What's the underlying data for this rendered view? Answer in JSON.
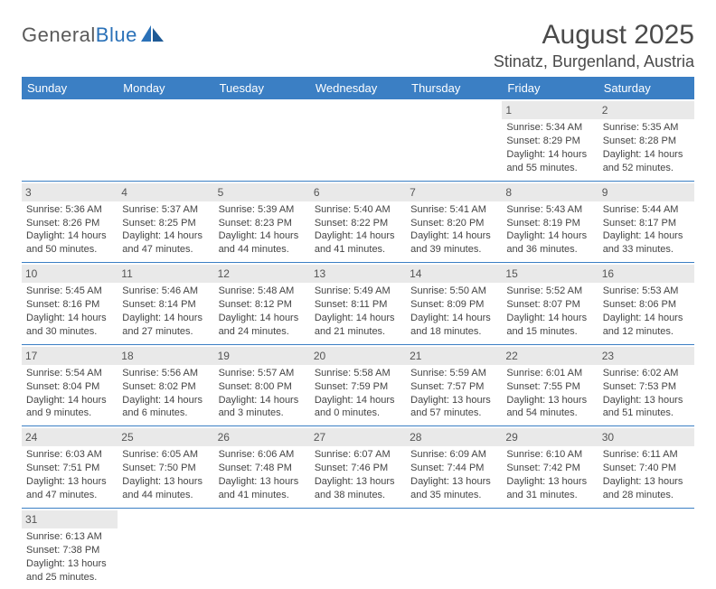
{
  "logo": {
    "word1": "General",
    "word2": "Blue"
  },
  "title": "August 2025",
  "location": "Stinatz, Burgenland, Austria",
  "colors": {
    "header_bg": "#3b7fc4",
    "header_text": "#ffffff",
    "daynum_bg": "#e9e9e9",
    "text": "#444444",
    "rule": "#3b7fc4",
    "logo_gray": "#5a5a5a",
    "logo_blue": "#2a71b8"
  },
  "day_headers": [
    "Sunday",
    "Monday",
    "Tuesday",
    "Wednesday",
    "Thursday",
    "Friday",
    "Saturday"
  ],
  "weeks": [
    [
      null,
      null,
      null,
      null,
      null,
      {
        "n": "1",
        "sr": "Sunrise: 5:34 AM",
        "ss": "Sunset: 8:29 PM",
        "dl": "Daylight: 14 hours and 55 minutes."
      },
      {
        "n": "2",
        "sr": "Sunrise: 5:35 AM",
        "ss": "Sunset: 8:28 PM",
        "dl": "Daylight: 14 hours and 52 minutes."
      }
    ],
    [
      {
        "n": "3",
        "sr": "Sunrise: 5:36 AM",
        "ss": "Sunset: 8:26 PM",
        "dl": "Daylight: 14 hours and 50 minutes."
      },
      {
        "n": "4",
        "sr": "Sunrise: 5:37 AM",
        "ss": "Sunset: 8:25 PM",
        "dl": "Daylight: 14 hours and 47 minutes."
      },
      {
        "n": "5",
        "sr": "Sunrise: 5:39 AM",
        "ss": "Sunset: 8:23 PM",
        "dl": "Daylight: 14 hours and 44 minutes."
      },
      {
        "n": "6",
        "sr": "Sunrise: 5:40 AM",
        "ss": "Sunset: 8:22 PM",
        "dl": "Daylight: 14 hours and 41 minutes."
      },
      {
        "n": "7",
        "sr": "Sunrise: 5:41 AM",
        "ss": "Sunset: 8:20 PM",
        "dl": "Daylight: 14 hours and 39 minutes."
      },
      {
        "n": "8",
        "sr": "Sunrise: 5:43 AM",
        "ss": "Sunset: 8:19 PM",
        "dl": "Daylight: 14 hours and 36 minutes."
      },
      {
        "n": "9",
        "sr": "Sunrise: 5:44 AM",
        "ss": "Sunset: 8:17 PM",
        "dl": "Daylight: 14 hours and 33 minutes."
      }
    ],
    [
      {
        "n": "10",
        "sr": "Sunrise: 5:45 AM",
        "ss": "Sunset: 8:16 PM",
        "dl": "Daylight: 14 hours and 30 minutes."
      },
      {
        "n": "11",
        "sr": "Sunrise: 5:46 AM",
        "ss": "Sunset: 8:14 PM",
        "dl": "Daylight: 14 hours and 27 minutes."
      },
      {
        "n": "12",
        "sr": "Sunrise: 5:48 AM",
        "ss": "Sunset: 8:12 PM",
        "dl": "Daylight: 14 hours and 24 minutes."
      },
      {
        "n": "13",
        "sr": "Sunrise: 5:49 AM",
        "ss": "Sunset: 8:11 PM",
        "dl": "Daylight: 14 hours and 21 minutes."
      },
      {
        "n": "14",
        "sr": "Sunrise: 5:50 AM",
        "ss": "Sunset: 8:09 PM",
        "dl": "Daylight: 14 hours and 18 minutes."
      },
      {
        "n": "15",
        "sr": "Sunrise: 5:52 AM",
        "ss": "Sunset: 8:07 PM",
        "dl": "Daylight: 14 hours and 15 minutes."
      },
      {
        "n": "16",
        "sr": "Sunrise: 5:53 AM",
        "ss": "Sunset: 8:06 PM",
        "dl": "Daylight: 14 hours and 12 minutes."
      }
    ],
    [
      {
        "n": "17",
        "sr": "Sunrise: 5:54 AM",
        "ss": "Sunset: 8:04 PM",
        "dl": "Daylight: 14 hours and 9 minutes."
      },
      {
        "n": "18",
        "sr": "Sunrise: 5:56 AM",
        "ss": "Sunset: 8:02 PM",
        "dl": "Daylight: 14 hours and 6 minutes."
      },
      {
        "n": "19",
        "sr": "Sunrise: 5:57 AM",
        "ss": "Sunset: 8:00 PM",
        "dl": "Daylight: 14 hours and 3 minutes."
      },
      {
        "n": "20",
        "sr": "Sunrise: 5:58 AM",
        "ss": "Sunset: 7:59 PM",
        "dl": "Daylight: 14 hours and 0 minutes."
      },
      {
        "n": "21",
        "sr": "Sunrise: 5:59 AM",
        "ss": "Sunset: 7:57 PM",
        "dl": "Daylight: 13 hours and 57 minutes."
      },
      {
        "n": "22",
        "sr": "Sunrise: 6:01 AM",
        "ss": "Sunset: 7:55 PM",
        "dl": "Daylight: 13 hours and 54 minutes."
      },
      {
        "n": "23",
        "sr": "Sunrise: 6:02 AM",
        "ss": "Sunset: 7:53 PM",
        "dl": "Daylight: 13 hours and 51 minutes."
      }
    ],
    [
      {
        "n": "24",
        "sr": "Sunrise: 6:03 AM",
        "ss": "Sunset: 7:51 PM",
        "dl": "Daylight: 13 hours and 47 minutes."
      },
      {
        "n": "25",
        "sr": "Sunrise: 6:05 AM",
        "ss": "Sunset: 7:50 PM",
        "dl": "Daylight: 13 hours and 44 minutes."
      },
      {
        "n": "26",
        "sr": "Sunrise: 6:06 AM",
        "ss": "Sunset: 7:48 PM",
        "dl": "Daylight: 13 hours and 41 minutes."
      },
      {
        "n": "27",
        "sr": "Sunrise: 6:07 AM",
        "ss": "Sunset: 7:46 PM",
        "dl": "Daylight: 13 hours and 38 minutes."
      },
      {
        "n": "28",
        "sr": "Sunrise: 6:09 AM",
        "ss": "Sunset: 7:44 PM",
        "dl": "Daylight: 13 hours and 35 minutes."
      },
      {
        "n": "29",
        "sr": "Sunrise: 6:10 AM",
        "ss": "Sunset: 7:42 PM",
        "dl": "Daylight: 13 hours and 31 minutes."
      },
      {
        "n": "30",
        "sr": "Sunrise: 6:11 AM",
        "ss": "Sunset: 7:40 PM",
        "dl": "Daylight: 13 hours and 28 minutes."
      }
    ],
    [
      {
        "n": "31",
        "sr": "Sunrise: 6:13 AM",
        "ss": "Sunset: 7:38 PM",
        "dl": "Daylight: 13 hours and 25 minutes."
      },
      null,
      null,
      null,
      null,
      null,
      null
    ]
  ]
}
